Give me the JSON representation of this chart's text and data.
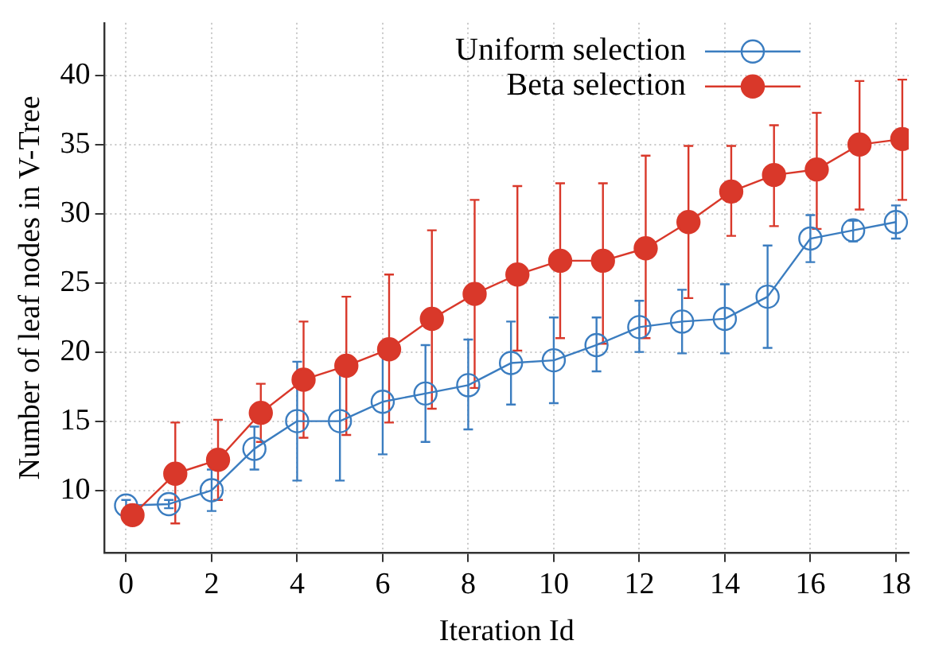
{
  "chart_data": {
    "type": "line",
    "xlabel": "Iteration Id",
    "ylabel": "Number of leaf nodes in V-Tree",
    "xlim": [
      -0.5,
      18.3
    ],
    "xticks": [
      0,
      2,
      4,
      6,
      8,
      10,
      12,
      14,
      16,
      18
    ],
    "ylim": [
      5.5,
      43.8
    ],
    "yticks": [
      10,
      15,
      20,
      25,
      30,
      35,
      40
    ],
    "grid": true,
    "legend": "top right",
    "marker": "circle",
    "series": [
      {
        "name": "Uniform selection",
        "color": "#3b7dc0",
        "x": [
          0,
          1,
          2,
          3,
          4,
          5,
          6,
          7,
          8,
          9,
          10,
          11,
          12,
          13,
          14,
          15,
          16,
          17,
          18
        ],
        "values": [
          8.9,
          9.0,
          10.0,
          13.0,
          15.0,
          15.0,
          16.4,
          17.0,
          17.6,
          19.2,
          19.4,
          20.5,
          21.8,
          22.2,
          22.4,
          24.0,
          28.2,
          28.8,
          29.4
        ],
        "errors": [
          [
            8.5,
            9.3
          ],
          [
            8.7,
            9.3
          ],
          [
            8.5,
            11.5
          ],
          [
            11.5,
            14.6
          ],
          [
            10.7,
            19.3
          ],
          [
            10.7,
            19.2
          ],
          [
            12.6,
            20.3
          ],
          [
            13.5,
            20.5
          ],
          [
            14.4,
            20.9
          ],
          [
            16.2,
            22.2
          ],
          [
            16.3,
            22.5
          ],
          [
            18.6,
            22.5
          ],
          [
            20.0,
            23.7
          ],
          [
            19.9,
            24.5
          ],
          [
            19.9,
            24.9
          ],
          [
            20.3,
            27.7
          ],
          [
            26.5,
            29.9
          ],
          [
            28.0,
            29.5
          ],
          [
            28.2,
            30.6
          ]
        ]
      },
      {
        "name": "Beta selection",
        "color": "#d9382a",
        "x": [
          0.15,
          1.15,
          2.15,
          3.15,
          4.15,
          5.15,
          6.15,
          7.15,
          8.15,
          9.15,
          10.15,
          11.15,
          12.15,
          13.15,
          14.15,
          15.15,
          16.15,
          17.15,
          18.15
        ],
        "values": [
          8.2,
          11.2,
          12.2,
          15.6,
          18.0,
          19.0,
          20.2,
          22.4,
          24.2,
          25.6,
          26.6,
          26.6,
          27.5,
          29.4,
          31.6,
          32.8,
          33.2,
          35.0,
          35.4
        ],
        "errors": [
          null,
          [
            7.6,
            14.9
          ],
          [
            9.3,
            15.1
          ],
          [
            13.5,
            17.7
          ],
          [
            13.8,
            22.2
          ],
          [
            14.0,
            24.0
          ],
          [
            14.9,
            25.6
          ],
          [
            15.9,
            28.8
          ],
          [
            17.4,
            31.0
          ],
          [
            20.1,
            32.0
          ],
          [
            21.0,
            32.2
          ],
          [
            20.6,
            32.2
          ],
          [
            21.0,
            34.2
          ],
          [
            23.9,
            34.9
          ],
          [
            28.4,
            34.9
          ],
          [
            29.1,
            36.4
          ],
          [
            28.9,
            37.3
          ],
          [
            30.3,
            39.6
          ],
          [
            31.0,
            39.7
          ]
        ]
      }
    ]
  }
}
